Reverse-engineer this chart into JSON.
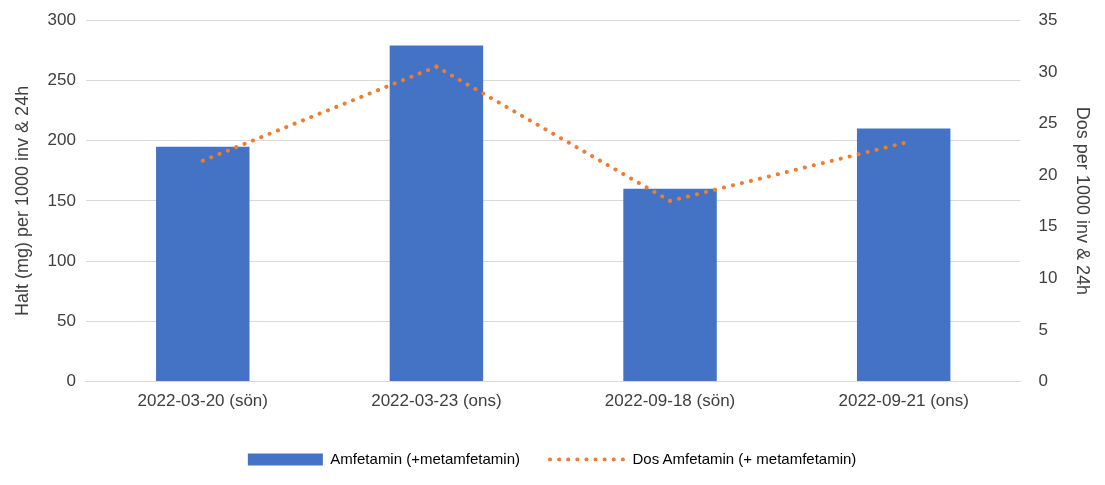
{
  "chart_data": {
    "type": "bar",
    "ylabel": "Halt (mg) per 1000 inv & 24h",
    "y2label": "Dos per 1000 inv & 24h",
    "categories": [
      "2022-03-20 (sön)",
      "2022-03-23 (ons)",
      "2022-09-18 (sön)",
      "2022-09-21 (ons)"
    ],
    "series": [
      {
        "name": "Amfetamin (+metamfetamin)",
        "color": "#4472c4",
        "values": [
          195,
          279,
          160,
          210
        ]
      },
      {
        "name": "Dos Amfetamin (+ metamfetamin)",
        "type": "line",
        "axis": "y2",
        "color": "#ed7d31",
        "line_style": "dotted",
        "marker": "none",
        "values": [
          21.4,
          30.5,
          17.5,
          23.1
        ]
      }
    ],
    "ylim": [
      0,
      300
    ],
    "yticks": [
      0,
      50,
      100,
      150,
      200,
      250,
      300
    ],
    "y2lim": [
      0,
      35
    ],
    "y2ticks": [
      0,
      5,
      10,
      15,
      20,
      25,
      30,
      35
    ],
    "grid": "y",
    "legend": "bottom"
  }
}
